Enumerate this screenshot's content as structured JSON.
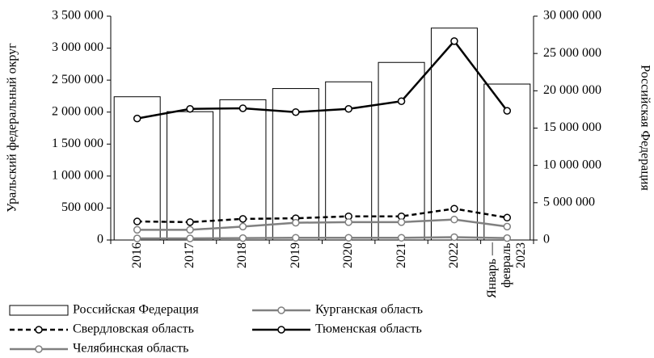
{
  "chart_data": {
    "type": "bar",
    "y_label": "Уральский федеральный округ",
    "y2_label": "Российская Федерация",
    "categories": [
      "2016",
      "2017",
      "2018",
      "2019",
      "2020",
      "2021",
      "2022",
      "Январь — февраль 2023"
    ],
    "series": [
      {
        "name": "Российская Федерация",
        "type": "bar",
        "axis": "y2",
        "color": "#000000",
        "values": [
          19200000,
          17200000,
          18800000,
          20300000,
          21200000,
          23800000,
          28400000,
          20900000
        ]
      },
      {
        "name": "Курганская область",
        "type": "line",
        "axis": "y",
        "color": "#808080",
        "style": "solid",
        "values": [
          25000,
          25000,
          30000,
          35000,
          35000,
          35000,
          45000,
          30000
        ]
      },
      {
        "name": "Свердловская область",
        "type": "line",
        "axis": "y",
        "color": "#000000",
        "style": "dashed",
        "values": [
          290000,
          280000,
          330000,
          340000,
          370000,
          370000,
          490000,
          350000
        ]
      },
      {
        "name": "Тюменская область",
        "type": "line",
        "axis": "y",
        "color": "#000000",
        "style": "solid",
        "values": [
          1900000,
          2050000,
          2060000,
          2000000,
          2050000,
          2170000,
          3110000,
          2020000
        ]
      },
      {
        "name": "Челябинская область",
        "type": "line",
        "axis": "y",
        "color": "#808080",
        "style": "solid",
        "values": [
          160000,
          160000,
          210000,
          270000,
          280000,
          280000,
          320000,
          210000
        ]
      }
    ],
    "ylim": [
      0,
      3500000
    ],
    "yticks": [
      0,
      {
        "value": 500000,
        "label": "500 000"
      },
      {
        "value": 1000000,
        "label": "1 000 000"
      },
      {
        "value": 1500000,
        "label": "1 500 000"
      },
      {
        "value": 2000000,
        "label": "2 000 000"
      },
      {
        "value": 2500000,
        "label": "2 500 000"
      },
      {
        "value": 3000000,
        "label": "3 000 000"
      },
      {
        "value": 3500000,
        "label": "3 500 000"
      }
    ],
    "y2lim": [
      0,
      30000000
    ],
    "y2ticks": [
      0,
      {
        "value": 5000000,
        "label": "5 000 000"
      },
      {
        "value": 10000000,
        "label": "10 000 000"
      },
      {
        "value": 15000000,
        "label": "15 000 000"
      },
      {
        "value": 20000000,
        "label": "20 000 000"
      },
      {
        "value": 25000000,
        "label": "25 000 000"
      },
      {
        "value": 30000000,
        "label": "30 000 000"
      }
    ],
    "grid": false
  }
}
